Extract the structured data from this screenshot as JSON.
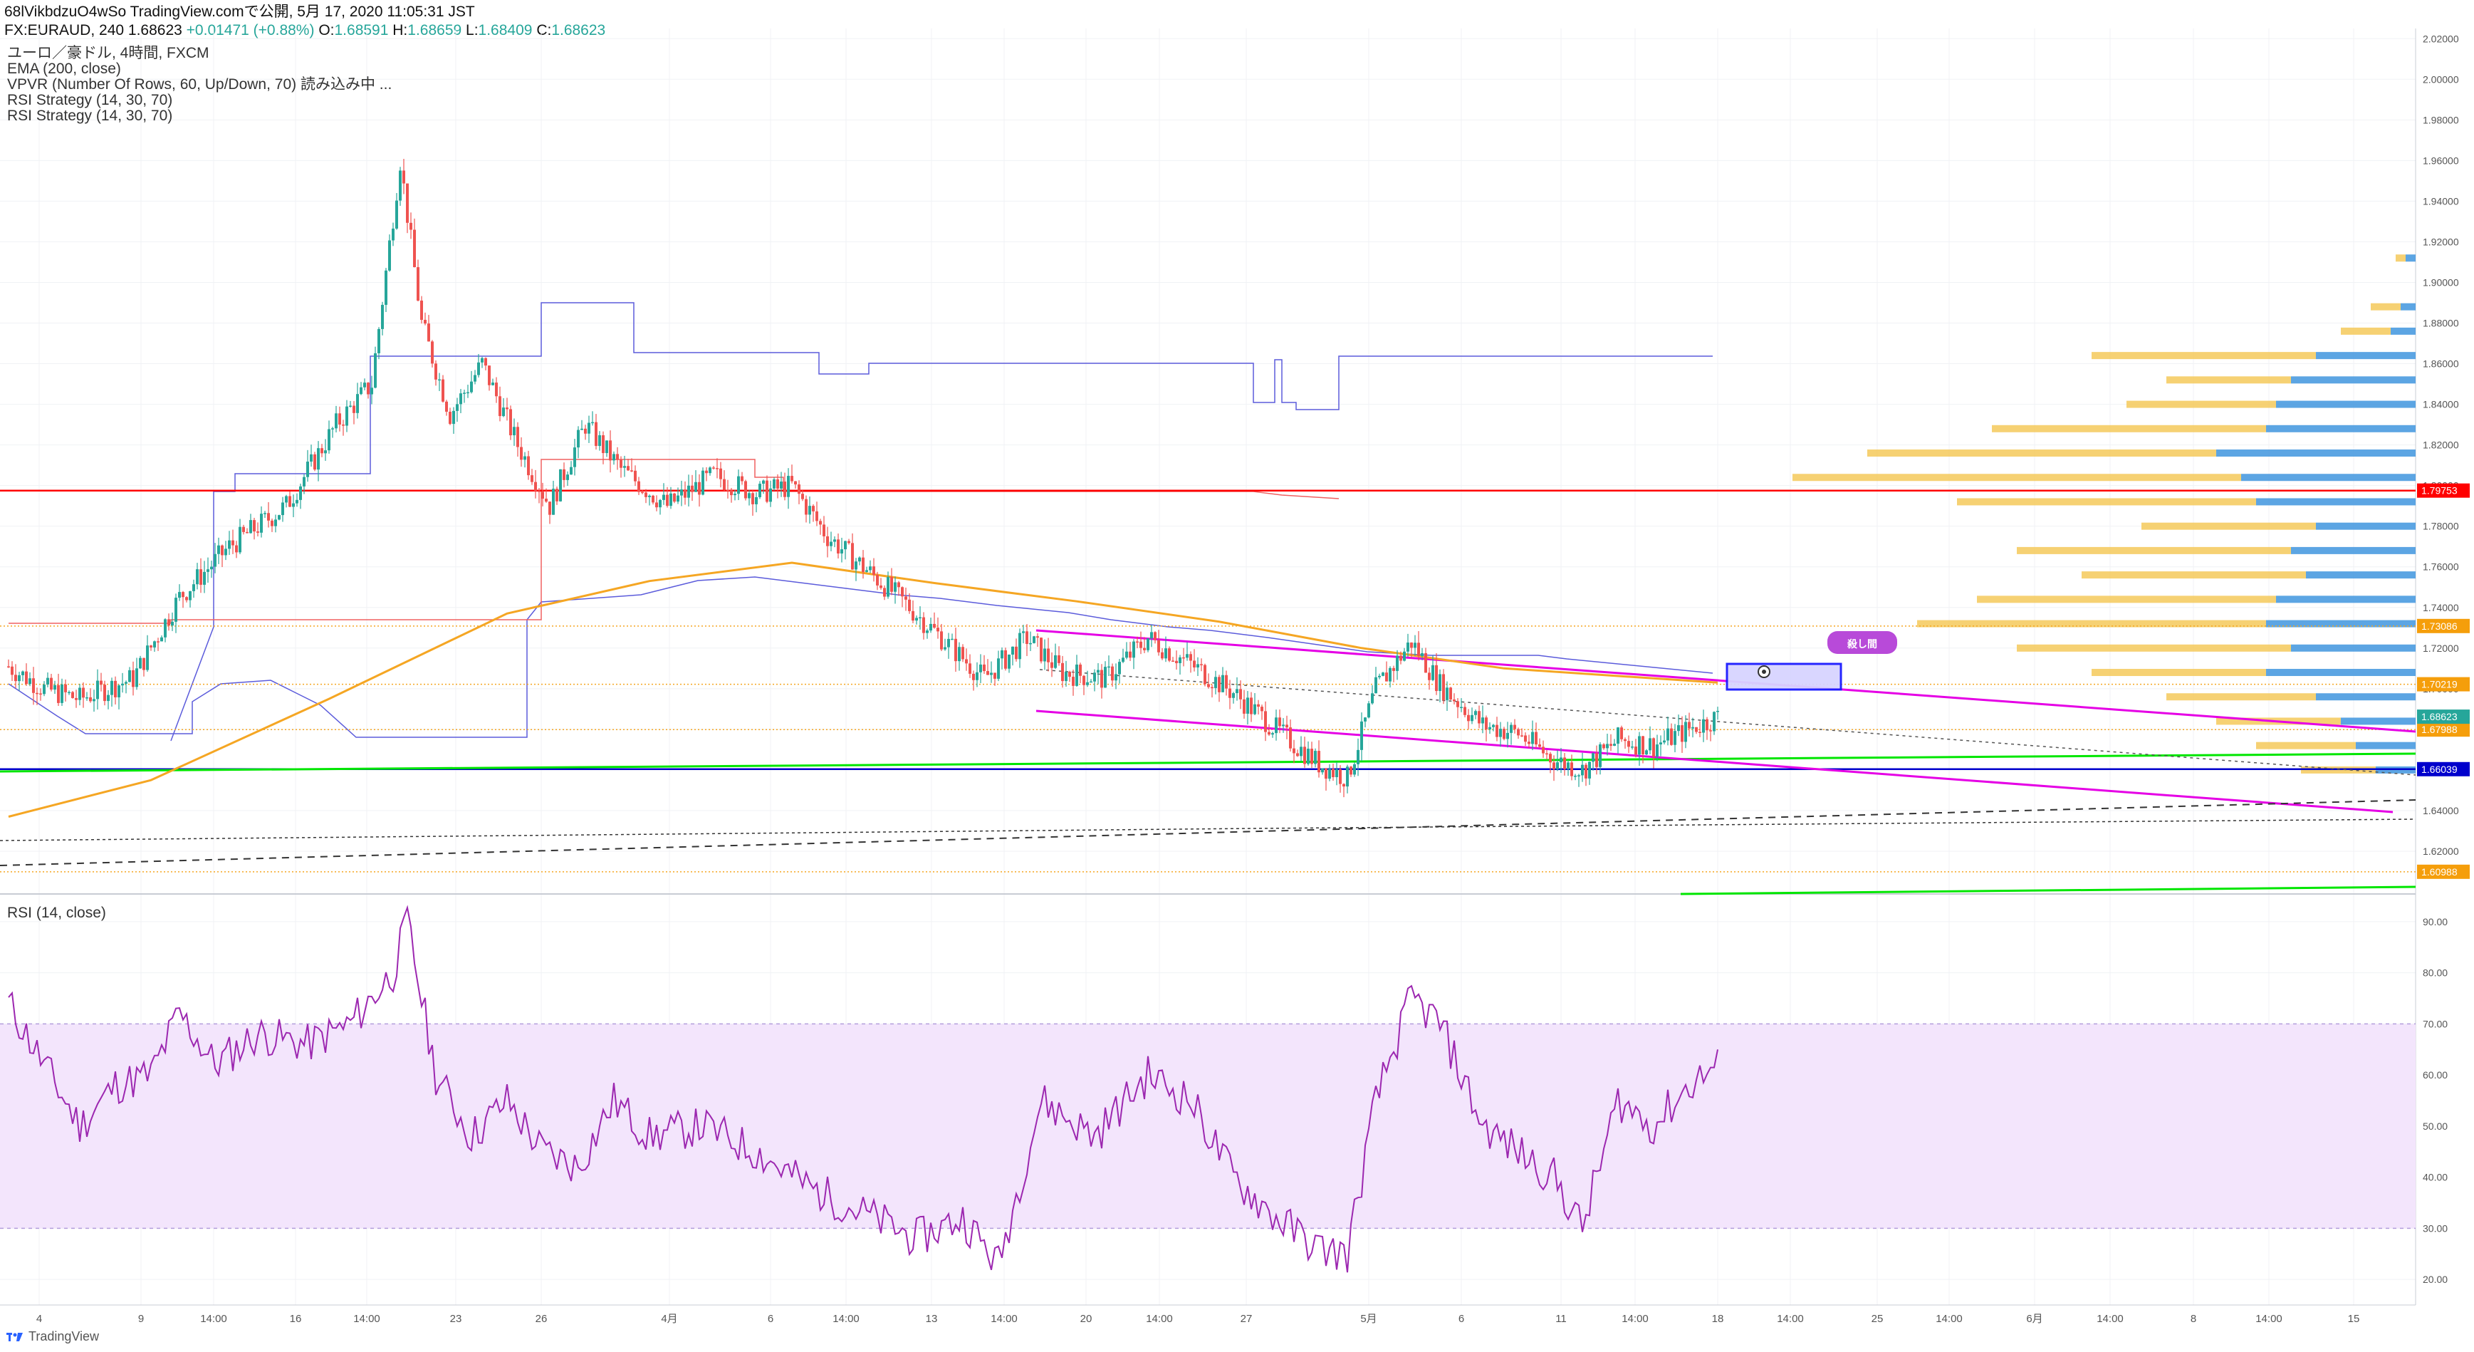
{
  "header": {
    "line1": "68lVikbdzuO4wSo TradingView.comで公開, 5月 17, 2020 11:05:31 JST",
    "symbol": "FX:EURAUD, 240",
    "last": "1.68623",
    "change": "+0.01471 (+0.88%)",
    "o_label": "O:",
    "o": "1.68591",
    "h_label": "H:",
    "h": "1.68659",
    "l_label": "L:",
    "l": "1.68409",
    "c_label": "C:",
    "c": "1.68623"
  },
  "legend": [
    "ユーロ／豪ドル, 4時間, FXCM",
    "EMA (200, close)",
    "VPVR (Number Of Rows, 60, Up/Down, 70) 読み込み中 ...",
    "RSI Strategy (14, 30, 70)",
    "RSI Strategy (14, 30, 70)"
  ],
  "rsi_title": "RSI (14, close)",
  "brand": "TradingView",
  "annotation": "殺し間",
  "colors": {
    "up": "#26a69a",
    "down": "#ef5350",
    "ema": "#f5a623",
    "magenta": "#e500e5",
    "green": "#00e600",
    "blue_line": "#0000cc",
    "red_line": "#ff0000",
    "rsi_line": "#9c27b0",
    "rsi_band": "#f3e5fc",
    "vp_up": "#4a9be0",
    "vp_down": "#f5c95a",
    "donchian_blue": "#5b5bdb",
    "donchian_red": "#f06060"
  },
  "chart_data": [
    {
      "type": "candlestick",
      "symbol": "FX:EURAUD",
      "timeframe": "240",
      "ylim": [
        1.6,
        2.025
      ],
      "y_ticks": [
        "2.02000",
        "2.00000",
        "1.98000",
        "1.96000",
        "1.94000",
        "1.92000",
        "1.90000",
        "1.88000",
        "1.86000",
        "1.84000",
        "1.82000",
        "1.80000",
        "1.78000",
        "1.76000",
        "1.74000",
        "1.72000",
        "1.70000",
        "1.68000",
        "1.66000",
        "1.64000",
        "1.62000"
      ],
      "x_ticks": [
        "4",
        "9",
        "14:00",
        "16",
        "14:00",
        "23",
        "26",
        "4月",
        "6",
        "14:00",
        "13",
        "14:00",
        "20",
        "14:00",
        "27",
        "5月",
        "6",
        "11",
        "14:00",
        "18",
        "14:00",
        "25",
        "14:00",
        "6月",
        "14:00",
        "8",
        "14:00",
        "15"
      ],
      "ohlc_key_points": [
        {
          "t": 0,
          "price": 1.711
        },
        {
          "t": 10,
          "price": 1.7
        },
        {
          "t": 20,
          "price": 1.695
        },
        {
          "t": 35,
          "price": 1.705
        },
        {
          "t": 48,
          "price": 1.745
        },
        {
          "t": 62,
          "price": 1.77
        },
        {
          "t": 78,
          "price": 1.79
        },
        {
          "t": 92,
          "price": 1.83
        },
        {
          "t": 102,
          "price": 1.85
        },
        {
          "t": 110,
          "price": 1.96
        },
        {
          "t": 116,
          "price": 1.88
        },
        {
          "t": 124,
          "price": 1.835
        },
        {
          "t": 133,
          "price": 1.86
        },
        {
          "t": 143,
          "price": 1.82
        },
        {
          "t": 152,
          "price": 1.79
        },
        {
          "t": 162,
          "price": 1.83
        },
        {
          "t": 172,
          "price": 1.808
        },
        {
          "t": 185,
          "price": 1.79
        },
        {
          "t": 198,
          "price": 1.805
        },
        {
          "t": 210,
          "price": 1.796
        },
        {
          "t": 220,
          "price": 1.8
        },
        {
          "t": 230,
          "price": 1.775
        },
        {
          "t": 240,
          "price": 1.76
        },
        {
          "t": 250,
          "price": 1.745
        },
        {
          "t": 262,
          "price": 1.725
        },
        {
          "t": 274,
          "price": 1.705
        },
        {
          "t": 286,
          "price": 1.725
        },
        {
          "t": 296,
          "price": 1.708
        },
        {
          "t": 308,
          "price": 1.705
        },
        {
          "t": 320,
          "price": 1.725
        },
        {
          "t": 332,
          "price": 1.712
        },
        {
          "t": 344,
          "price": 1.698
        },
        {
          "t": 356,
          "price": 1.68
        },
        {
          "t": 368,
          "price": 1.663
        },
        {
          "t": 376,
          "price": 1.656
        },
        {
          "t": 384,
          "price": 1.7
        },
        {
          "t": 394,
          "price": 1.723
        },
        {
          "t": 402,
          "price": 1.702
        },
        {
          "t": 414,
          "price": 1.682
        },
        {
          "t": 424,
          "price": 1.678
        },
        {
          "t": 434,
          "price": 1.665
        },
        {
          "t": 442,
          "price": 1.66
        },
        {
          "t": 452,
          "price": 1.675
        },
        {
          "t": 462,
          "price": 1.672
        },
        {
          "t": 472,
          "price": 1.68
        },
        {
          "t": 480,
          "price": 1.686
        }
      ],
      "ema200": [
        {
          "t": 0,
          "price": 1.637
        },
        {
          "t": 40,
          "price": 1.655
        },
        {
          "t": 90,
          "price": 1.695
        },
        {
          "t": 140,
          "price": 1.737
        },
        {
          "t": 180,
          "price": 1.753
        },
        {
          "t": 220,
          "price": 1.762
        },
        {
          "t": 260,
          "price": 1.752
        },
        {
          "t": 300,
          "price": 1.743
        },
        {
          "t": 340,
          "price": 1.733
        },
        {
          "t": 380,
          "price": 1.72
        },
        {
          "t": 420,
          "price": 1.71
        },
        {
          "t": 480,
          "price": 1.703
        }
      ],
      "horizontal_levels": [
        {
          "price": "1.79753",
          "color": "#ff0000",
          "style": "solid"
        },
        {
          "price": "1.73086",
          "color": "#f5a623",
          "style": "dotted"
        },
        {
          "price": "1.70219",
          "color": "#f5a623",
          "style": "dotted"
        },
        {
          "price": "1.67988",
          "color": "#f5a623",
          "style": "dotted"
        },
        {
          "price": "1.66039",
          "color": "#0000cc",
          "style": "solid"
        },
        {
          "price": "1.60988",
          "color": "#f5a623",
          "style": "dotted"
        }
      ],
      "last_price_label": "1.68623",
      "volume_profile": [
        {
          "price": 1.912,
          "up": 0.02,
          "down": 0.02
        },
        {
          "price": 1.888,
          "up": 0.03,
          "down": 0.06
        },
        {
          "price": 1.876,
          "up": 0.05,
          "down": 0.1
        },
        {
          "price": 1.864,
          "up": 0.2,
          "down": 0.45
        },
        {
          "price": 1.852,
          "up": 0.25,
          "down": 0.25
        },
        {
          "price": 1.84,
          "up": 0.28,
          "down": 0.3
        },
        {
          "price": 1.828,
          "up": 0.3,
          "down": 0.55
        },
        {
          "price": 1.816,
          "up": 0.4,
          "down": 0.7
        },
        {
          "price": 1.804,
          "up": 0.35,
          "down": 0.9
        },
        {
          "price": 1.792,
          "up": 0.32,
          "down": 0.6
        },
        {
          "price": 1.78,
          "up": 0.2,
          "down": 0.35
        },
        {
          "price": 1.768,
          "up": 0.25,
          "down": 0.55
        },
        {
          "price": 1.756,
          "up": 0.22,
          "down": 0.45
        },
        {
          "price": 1.744,
          "up": 0.28,
          "down": 0.6
        },
        {
          "price": 1.732,
          "up": 0.3,
          "down": 0.7
        },
        {
          "price": 1.72,
          "up": 0.25,
          "down": 0.55
        },
        {
          "price": 1.708,
          "up": 0.3,
          "down": 0.35
        },
        {
          "price": 1.696,
          "up": 0.2,
          "down": 0.3
        },
        {
          "price": 1.684,
          "up": 0.15,
          "down": 0.25
        },
        {
          "price": 1.672,
          "up": 0.12,
          "down": 0.2
        },
        {
          "price": 1.66,
          "up": 0.08,
          "down": 0.15
        }
      ]
    },
    {
      "type": "line",
      "title": "RSI (14, close)",
      "ylim": [
        15,
        95
      ],
      "y_ticks": [
        "90.00",
        "80.00",
        "70.00",
        "60.00",
        "50.00",
        "40.00",
        "30.00",
        "20.00"
      ],
      "band": [
        30,
        70
      ],
      "values_key_points": [
        {
          "t": 0,
          "v": 74
        },
        {
          "t": 10,
          "v": 62
        },
        {
          "t": 20,
          "v": 50
        },
        {
          "t": 30,
          "v": 58
        },
        {
          "t": 40,
          "v": 60
        },
        {
          "t": 48,
          "v": 72
        },
        {
          "t": 58,
          "v": 62
        },
        {
          "t": 70,
          "v": 68
        },
        {
          "t": 84,
          "v": 66
        },
        {
          "t": 96,
          "v": 70
        },
        {
          "t": 108,
          "v": 80
        },
        {
          "t": 112,
          "v": 90
        },
        {
          "t": 120,
          "v": 60
        },
        {
          "t": 130,
          "v": 48
        },
        {
          "t": 140,
          "v": 55
        },
        {
          "t": 150,
          "v": 45
        },
        {
          "t": 160,
          "v": 42
        },
        {
          "t": 170,
          "v": 55
        },
        {
          "t": 180,
          "v": 48
        },
        {
          "t": 195,
          "v": 50
        },
        {
          "t": 210,
          "v": 45
        },
        {
          "t": 225,
          "v": 38
        },
        {
          "t": 240,
          "v": 33
        },
        {
          "t": 255,
          "v": 28
        },
        {
          "t": 268,
          "v": 32
        },
        {
          "t": 278,
          "v": 23
        },
        {
          "t": 290,
          "v": 55
        },
        {
          "t": 305,
          "v": 48
        },
        {
          "t": 320,
          "v": 60
        },
        {
          "t": 332,
          "v": 55
        },
        {
          "t": 344,
          "v": 40
        },
        {
          "t": 356,
          "v": 32
        },
        {
          "t": 368,
          "v": 26
        },
        {
          "t": 376,
          "v": 25
        },
        {
          "t": 384,
          "v": 55
        },
        {
          "t": 394,
          "v": 75
        },
        {
          "t": 402,
          "v": 70
        },
        {
          "t": 414,
          "v": 50
        },
        {
          "t": 424,
          "v": 45
        },
        {
          "t": 434,
          "v": 40
        },
        {
          "t": 442,
          "v": 30
        },
        {
          "t": 452,
          "v": 55
        },
        {
          "t": 462,
          "v": 50
        },
        {
          "t": 472,
          "v": 58
        },
        {
          "t": 480,
          "v": 62
        }
      ]
    }
  ]
}
